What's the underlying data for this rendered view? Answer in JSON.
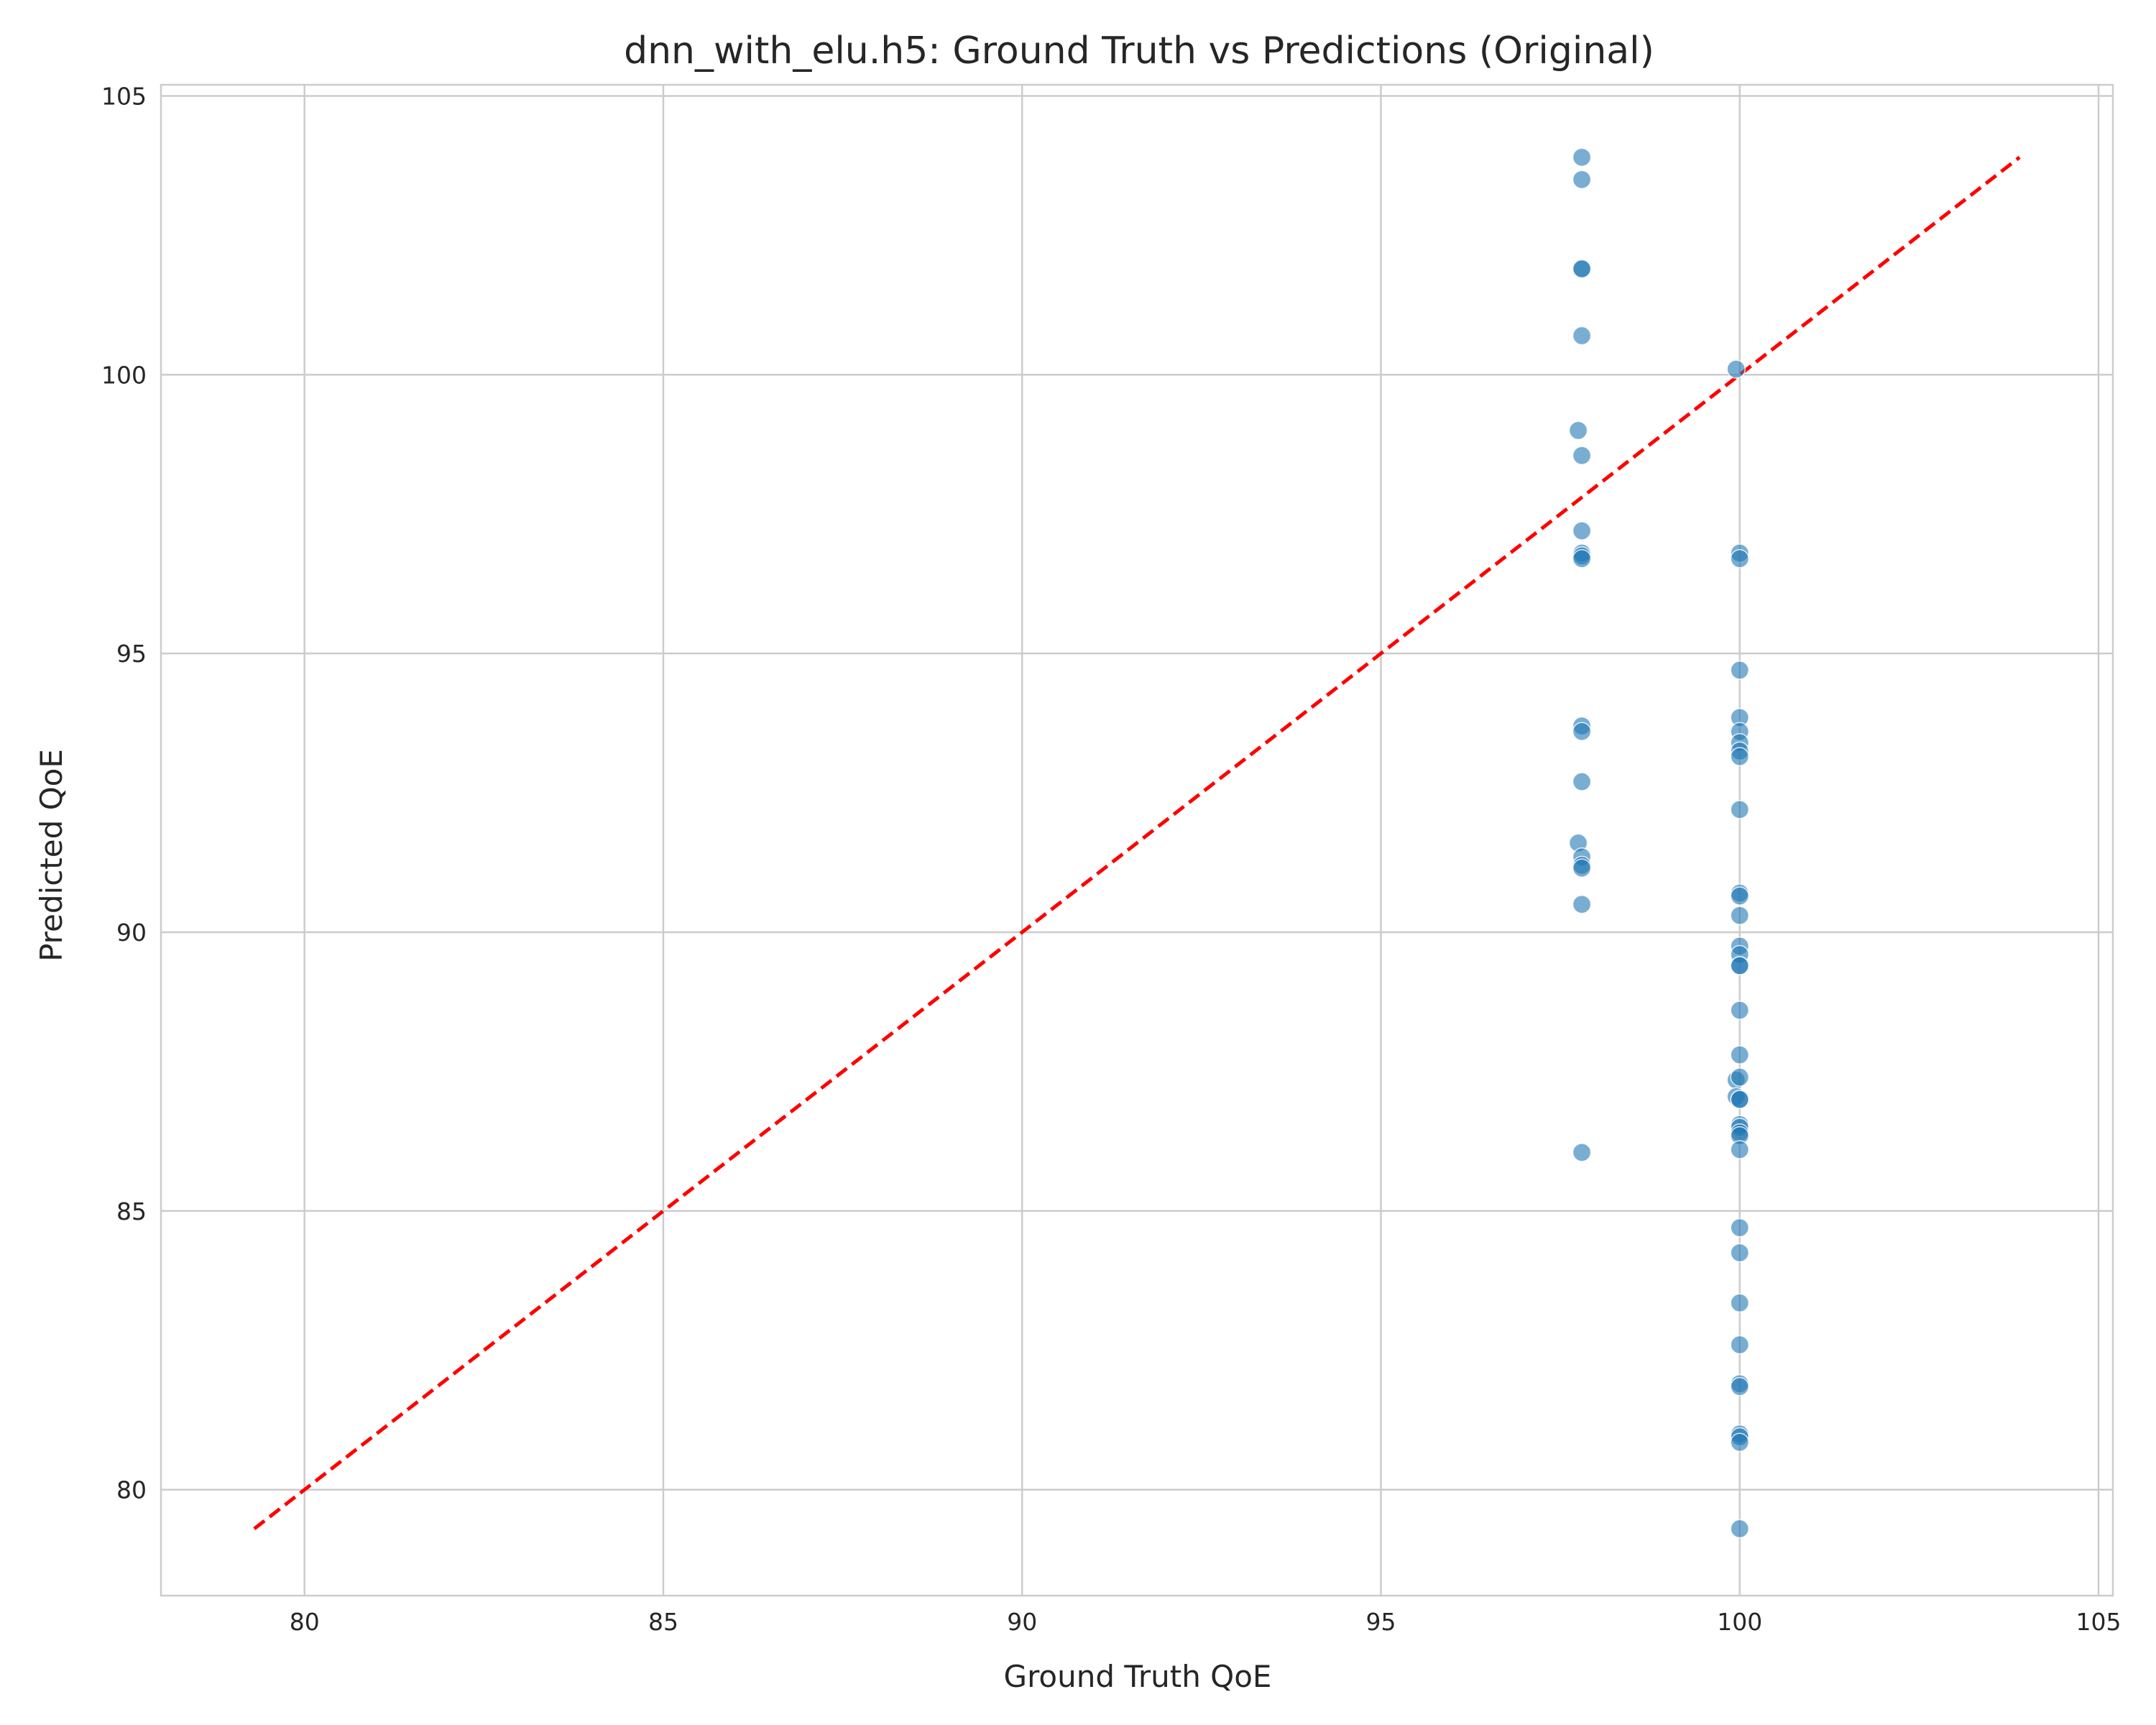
{
  "chart_data": {
    "type": "scatter",
    "title": "dnn_with_elu.h5: Ground Truth vs Predictions (Original)",
    "xlabel": "Ground Truth QoE",
    "ylabel": "Predicted QoE",
    "xlim": [
      78,
      105.2
    ],
    "ylim": [
      78.1,
      105.2
    ],
    "xticks": [
      80,
      85,
      90,
      95,
      100,
      105
    ],
    "yticks": [
      80,
      85,
      90,
      95,
      100,
      105
    ],
    "xtick_labels": [
      "80",
      "85",
      "90",
      "95",
      "100",
      "105"
    ],
    "ytick_labels": [
      "80",
      "85",
      "90",
      "95",
      "100",
      "105"
    ],
    "grid": true,
    "legend": "none",
    "point_color": "#1f77b4",
    "reference_line": {
      "style": "dashed",
      "color": "#ff0000",
      "x": [
        79.3,
        103.9
      ],
      "y": [
        79.3,
        103.9
      ]
    },
    "points": [
      {
        "x": 97.8,
        "y": 103.9
      },
      {
        "x": 97.8,
        "y": 103.5
      },
      {
        "x": 97.8,
        "y": 101.9
      },
      {
        "x": 97.8,
        "y": 101.9
      },
      {
        "x": 97.8,
        "y": 100.7
      },
      {
        "x": 97.75,
        "y": 99.0
      },
      {
        "x": 97.8,
        "y": 98.55
      },
      {
        "x": 97.8,
        "y": 97.2
      },
      {
        "x": 97.8,
        "y": 96.8
      },
      {
        "x": 97.8,
        "y": 96.75
      },
      {
        "x": 97.8,
        "y": 96.7
      },
      {
        "x": 97.8,
        "y": 93.7
      },
      {
        "x": 97.8,
        "y": 93.6
      },
      {
        "x": 97.8,
        "y": 92.7
      },
      {
        "x": 97.75,
        "y": 91.6
      },
      {
        "x": 97.8,
        "y": 91.35
      },
      {
        "x": 97.8,
        "y": 91.2
      },
      {
        "x": 97.8,
        "y": 91.15
      },
      {
        "x": 97.8,
        "y": 90.5
      },
      {
        "x": 97.8,
        "y": 86.05
      },
      {
        "x": 99.95,
        "y": 100.1
      },
      {
        "x": 100.0,
        "y": 96.8
      },
      {
        "x": 100.0,
        "y": 96.7
      },
      {
        "x": 100.0,
        "y": 94.7
      },
      {
        "x": 100.0,
        "y": 93.85
      },
      {
        "x": 100.0,
        "y": 93.6
      },
      {
        "x": 100.0,
        "y": 93.4
      },
      {
        "x": 100.0,
        "y": 93.25
      },
      {
        "x": 100.0,
        "y": 93.15
      },
      {
        "x": 100.0,
        "y": 92.2
      },
      {
        "x": 100.0,
        "y": 90.7
      },
      {
        "x": 100.0,
        "y": 90.65
      },
      {
        "x": 100.0,
        "y": 90.3
      },
      {
        "x": 100.0,
        "y": 89.75
      },
      {
        "x": 100.0,
        "y": 89.6
      },
      {
        "x": 100.0,
        "y": 89.4
      },
      {
        "x": 100.0,
        "y": 89.4
      },
      {
        "x": 100.0,
        "y": 88.6
      },
      {
        "x": 100.0,
        "y": 87.8
      },
      {
        "x": 99.95,
        "y": 87.35
      },
      {
        "x": 100.0,
        "y": 87.4
      },
      {
        "x": 99.95,
        "y": 87.05
      },
      {
        "x": 100.0,
        "y": 87.0
      },
      {
        "x": 100.0,
        "y": 87.0
      },
      {
        "x": 100.0,
        "y": 86.55
      },
      {
        "x": 100.0,
        "y": 86.5
      },
      {
        "x": 100.0,
        "y": 86.4
      },
      {
        "x": 100.0,
        "y": 86.35
      },
      {
        "x": 100.0,
        "y": 86.1
      },
      {
        "x": 100.0,
        "y": 84.7
      },
      {
        "x": 100.0,
        "y": 84.25
      },
      {
        "x": 100.0,
        "y": 83.35
      },
      {
        "x": 100.0,
        "y": 82.6
      },
      {
        "x": 100.0,
        "y": 81.9
      },
      {
        "x": 100.0,
        "y": 81.85
      },
      {
        "x": 100.0,
        "y": 81.0
      },
      {
        "x": 100.0,
        "y": 80.95
      },
      {
        "x": 100.0,
        "y": 80.85
      },
      {
        "x": 100.0,
        "y": 79.3
      }
    ]
  }
}
